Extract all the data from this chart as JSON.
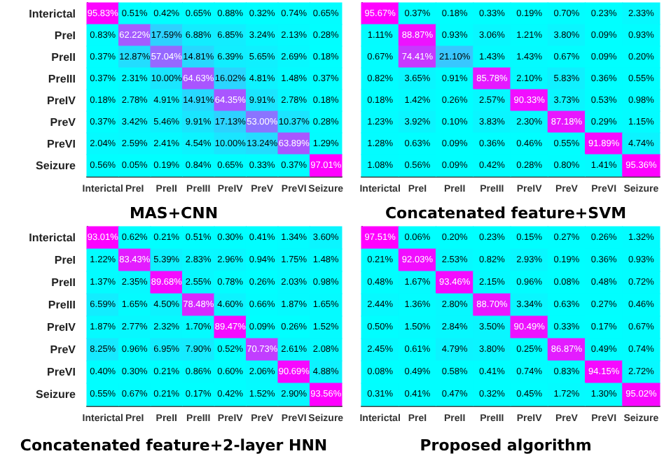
{
  "chart_data": [
    {
      "type": "heatmap",
      "title": "MAS+CNN",
      "categories": [
        "Interictal",
        "PreI",
        "PreII",
        "PreIII",
        "PreIV",
        "PreV",
        "PreVI",
        "Seizure"
      ],
      "y_categories": [
        "Interictal",
        "PreI",
        "PreII",
        "PreIII",
        "PreIV",
        "PreV",
        "PreVI",
        "Seizure"
      ],
      "cells": [
        [
          95.83,
          0.51,
          0.42,
          0.65,
          0.88,
          0.32,
          0.74,
          0.65
        ],
        [
          0.83,
          62.22,
          17.59,
          6.88,
          6.85,
          3.24,
          2.13,
          0.28
        ],
        [
          0.37,
          12.87,
          57.04,
          14.81,
          6.39,
          5.65,
          2.69,
          0.18
        ],
        [
          0.37,
          2.31,
          10.0,
          64.63,
          16.02,
          4.81,
          1.48,
          0.37
        ],
        [
          0.18,
          2.78,
          4.91,
          14.91,
          64.35,
          9.91,
          2.78,
          0.18
        ],
        [
          0.37,
          3.42,
          5.46,
          9.91,
          17.13,
          53.0,
          10.37,
          0.28
        ],
        [
          2.04,
          2.59,
          2.41,
          4.54,
          10.0,
          13.24,
          63.89,
          1.29
        ],
        [
          0.56,
          0.05,
          0.19,
          0.84,
          0.65,
          0.33,
          0.37,
          97.01
        ]
      ],
      "cell_labels": [
        [
          "95.83%",
          "0.51%",
          "0.42%",
          "0.65%",
          "0.88%",
          "0.32%",
          "0.74%",
          "0.65%"
        ],
        [
          "0.83%",
          "62.22%",
          "17.59%",
          "6.88%",
          "6.85%",
          "3.24%",
          "2.13%",
          "0.28%"
        ],
        [
          "0.37%",
          "12.87%",
          "57.04%",
          "14.81%",
          "6.39%",
          "5.65%",
          "2.69%",
          "0.18%"
        ],
        [
          "0.37%",
          "2.31%",
          "10.00%",
          "64.63%",
          "16.02%",
          "4.81%",
          "1.48%",
          "0.37%"
        ],
        [
          "0.18%",
          "2.78%",
          "4.91%",
          "14.91%",
          "64.35%",
          "9.91%",
          "2.78%",
          "0.18%"
        ],
        [
          "0.37%",
          "3.42%",
          "5.46%",
          "9.91%",
          "17.13%",
          "53.00%",
          "10.37%",
          "0.28%"
        ],
        [
          "2.04%",
          "2.59%",
          "2.41%",
          "4.54%",
          "10.00%",
          "13.24%",
          "63.89%",
          "1.29%"
        ],
        [
          "0.56%",
          "0.05%",
          "0.19%",
          "0.84%",
          "0.65%",
          "0.33%",
          "0.37%",
          "97.01%"
        ]
      ]
    },
    {
      "type": "heatmap",
      "title": "Concatenated feature+SVM",
      "tick_labels": "x",
      "categories": [
        "Interictal",
        "PreI",
        "PreII",
        "PreIII",
        "PreIV",
        "PreV",
        "PreVI",
        "Seizure"
      ],
      "y_categories": [
        null,
        null,
        null,
        null,
        null,
        null,
        null,
        null
      ],
      "cells": [
        [
          95.67,
          0.37,
          0.18,
          0.33,
          0.19,
          0.7,
          0.23,
          2.33
        ],
        [
          1.11,
          88.87,
          0.93,
          3.06,
          1.21,
          3.8,
          0.09,
          0.93
        ],
        [
          0.67,
          74.41,
          21.1,
          1.43,
          1.43,
          0.67,
          0.09,
          0.2
        ],
        [
          0.82,
          3.65,
          0.91,
          85.78,
          2.1,
          5.83,
          0.36,
          0.55
        ],
        [
          0.18,
          1.42,
          0.26,
          2.57,
          90.33,
          3.73,
          0.53,
          0.98
        ],
        [
          1.23,
          3.92,
          0.1,
          3.83,
          2.3,
          87.18,
          0.29,
          1.15
        ],
        [
          1.28,
          0.63,
          0.09,
          0.36,
          0.46,
          0.55,
          91.89,
          4.74
        ],
        [
          1.08,
          0.56,
          0.09,
          0.42,
          0.28,
          0.8,
          1.41,
          95.36
        ]
      ],
      "cell_labels": [
        [
          "95.67%",
          "0.37%",
          "0.18%",
          "0.33%",
          "0.19%",
          "0.70%",
          "0.23%",
          "2.33%"
        ],
        [
          "1.11%",
          "88.87%",
          "0.93%",
          "3.06%",
          "1.21%",
          "3.80%",
          "0.09%",
          "0.93%"
        ],
        [
          "0.67%",
          "74.41%",
          "21.10%",
          "1.43%",
          "1.43%",
          "0.67%",
          "0.09%",
          "0.20%"
        ],
        [
          "0.82%",
          "3.65%",
          "0.91%",
          "85.78%",
          "2.10%",
          "5.83%",
          "0.36%",
          "0.55%"
        ],
        [
          "0.18%",
          "1.42%",
          "0.26%",
          "2.57%",
          "90.33%",
          "3.73%",
          "0.53%",
          "0.98%"
        ],
        [
          "1.23%",
          "3.92%",
          "0.10%",
          "3.83%",
          "2.30%",
          "87.18%",
          "0.29%",
          "1.15%"
        ],
        [
          "1.28%",
          "0.63%",
          "0.09%",
          "0.36%",
          "0.46%",
          "0.55%",
          "91.89%",
          "4.74%"
        ],
        [
          "1.08%",
          "0.56%",
          "0.09%",
          "0.42%",
          "0.28%",
          "0.80%",
          "1.41%",
          "95.36%"
        ]
      ]
    },
    {
      "type": "heatmap",
      "title": "Concatenated feature+2-layer HNN",
      "categories": [
        "Interictal",
        "PreI",
        "PreII",
        "PreIII",
        "PreIV",
        "PreV",
        "PreVI",
        "Seizure"
      ],
      "y_categories": [
        "Interictal",
        "PreI",
        "PreII",
        "PreIII",
        "PreIV",
        "PreV",
        "PreVI",
        "Seizure"
      ],
      "cells": [
        [
          93.01,
          0.62,
          0.21,
          0.51,
          0.3,
          0.41,
          1.34,
          3.6
        ],
        [
          1.22,
          83.43,
          5.39,
          2.83,
          2.96,
          0.94,
          1.75,
          1.48
        ],
        [
          1.37,
          2.35,
          89.68,
          2.55,
          0.78,
          0.26,
          2.03,
          0.98
        ],
        [
          6.59,
          1.65,
          4.5,
          78.48,
          4.6,
          0.66,
          1.87,
          1.65
        ],
        [
          1.87,
          2.77,
          2.32,
          1.7,
          89.47,
          0.09,
          0.26,
          1.52
        ],
        [
          8.25,
          0.96,
          6.95,
          7.9,
          0.52,
          70.73,
          2.61,
          2.08
        ],
        [
          0.4,
          0.3,
          0.21,
          0.86,
          0.6,
          2.06,
          90.69,
          4.88
        ],
        [
          0.55,
          0.67,
          0.21,
          0.17,
          0.42,
          1.52,
          2.9,
          93.56
        ]
      ],
      "cell_labels": [
        [
          "93.01%",
          "0.62%",
          "0.21%",
          "0.51%",
          "0.30%",
          "0.41%",
          "1.34%",
          "3.60%"
        ],
        [
          "1.22%",
          "83.43%",
          "5.39%",
          "2.83%",
          "2.96%",
          "0.94%",
          "1.75%",
          "1.48%"
        ],
        [
          "1.37%",
          "2.35%",
          "89.68%",
          "2.55%",
          "0.78%",
          "0.26%",
          "2.03%",
          "0.98%"
        ],
        [
          "6.59%",
          "1.65%",
          "4.50%",
          "78.48%",
          "4.60%",
          "0.66%",
          "1.87%",
          "1.65%"
        ],
        [
          "1.87%",
          "2.77%",
          "2.32%",
          "1.70%",
          "89.47%",
          "0.09%",
          "0.26%",
          "1.52%"
        ],
        [
          "8.25%",
          "0.96%",
          "6.95%",
          "7.90%",
          "0.52%",
          "70.73%",
          "2.61%",
          "2.08%"
        ],
        [
          "0.40%",
          "0.30%",
          "0.21%",
          "0.86%",
          "0.60%",
          "2.06%",
          "90.69%",
          "4.88%"
        ],
        [
          "0.55%",
          "0.67%",
          "0.21%",
          "0.17%",
          "0.42%",
          "1.52%",
          "2.90%",
          "93.56%"
        ]
      ]
    },
    {
      "type": "heatmap",
      "title": "Proposed algorithm",
      "tick_labels": "x",
      "categories": [
        "Interictal",
        "PreI",
        "PreII",
        "PreIII",
        "PreIV",
        "PreV",
        "PreVI",
        "Seizure"
      ],
      "y_categories": [
        null,
        null,
        null,
        null,
        null,
        null,
        null,
        null
      ],
      "cells": [
        [
          97.51,
          0.06,
          0.2,
          0.23,
          0.15,
          0.27,
          0.26,
          1.32
        ],
        [
          0.21,
          92.03,
          2.53,
          0.82,
          2.93,
          0.19,
          0.36,
          0.93
        ],
        [
          0.48,
          1.67,
          93.46,
          2.15,
          0.96,
          0.08,
          0.48,
          0.72
        ],
        [
          2.44,
          1.36,
          2.8,
          88.7,
          3.34,
          0.63,
          0.27,
          0.46
        ],
        [
          0.5,
          1.5,
          2.84,
          3.5,
          90.49,
          0.33,
          0.17,
          0.67
        ],
        [
          2.45,
          0.61,
          4.79,
          3.8,
          0.25,
          86.87,
          0.49,
          0.74
        ],
        [
          0.08,
          0.49,
          0.58,
          0.41,
          0.74,
          0.83,
          94.15,
          2.72
        ],
        [
          0.31,
          0.41,
          0.47,
          0.32,
          0.45,
          1.72,
          1.3,
          95.02
        ]
      ],
      "cell_labels": [
        [
          "97.51%",
          "0.06%",
          "0.20%",
          "0.23%",
          "0.15%",
          "0.27%",
          "0.26%",
          "1.32%"
        ],
        [
          "0.21%",
          "92.03%",
          "2.53%",
          "0.82%",
          "2.93%",
          "0.19%",
          "0.36%",
          "0.93%"
        ],
        [
          "0.48%",
          "1.67%",
          "93.46%",
          "2.15%",
          "0.96%",
          "0.08%",
          "0.48%",
          "0.72%"
        ],
        [
          "2.44%",
          "1.36%",
          "2.80%",
          "88.70%",
          "3.34%",
          "0.63%",
          "0.27%",
          "0.46%"
        ],
        [
          "0.50%",
          "1.50%",
          "2.84%",
          "3.50%",
          "90.49%",
          "0.33%",
          "0.17%",
          "0.67%"
        ],
        [
          "2.45%",
          "0.61%",
          "4.79%",
          "3.80%",
          "0.25%",
          "86.87%",
          "0.49%",
          "0.74%"
        ],
        [
          "0.08%",
          "0.49%",
          "0.58%",
          "0.41%",
          "0.74%",
          "0.83%",
          "94.15%",
          "2.72%"
        ],
        [
          "0.31%",
          "0.41%",
          "0.47%",
          "0.32%",
          "0.45%",
          "1.72%",
          "1.30%",
          "95.02%"
        ]
      ]
    }
  ]
}
